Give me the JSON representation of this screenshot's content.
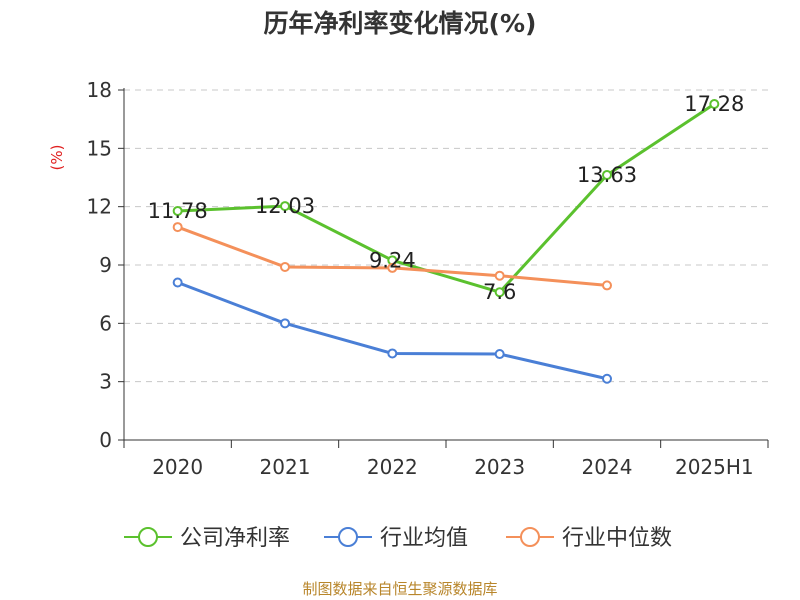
{
  "title": "历年净利率变化情况(%)",
  "source": "制图数据来自恒生聚源数据库",
  "chart_data": {
    "type": "line",
    "title": "历年净利率变化情况(%)",
    "y_unit": "(%)",
    "categories": [
      "2020",
      "2021",
      "2022",
      "2023",
      "2024",
      "2025H1"
    ],
    "ylim": [
      0,
      18
    ],
    "yticks": [
      0,
      3,
      6,
      9,
      12,
      15,
      18
    ],
    "grid": true,
    "legend_position": "bottom",
    "series": [
      {
        "name": "公司净利率",
        "color": "#5bc12e",
        "values": [
          11.78,
          12.03,
          9.24,
          7.6,
          13.63,
          17.28
        ],
        "labels": [
          "11.78",
          "12.03",
          "9.24",
          "7.6",
          "13.63",
          "17.28"
        ]
      },
      {
        "name": "行业均值",
        "color": "#4a7fd6",
        "values": [
          8.1,
          6.0,
          4.45,
          4.42,
          3.15,
          null
        ]
      },
      {
        "name": "行业中位数",
        "color": "#f4905a",
        "values": [
          10.95,
          8.9,
          8.85,
          8.45,
          7.95,
          null
        ]
      }
    ]
  }
}
